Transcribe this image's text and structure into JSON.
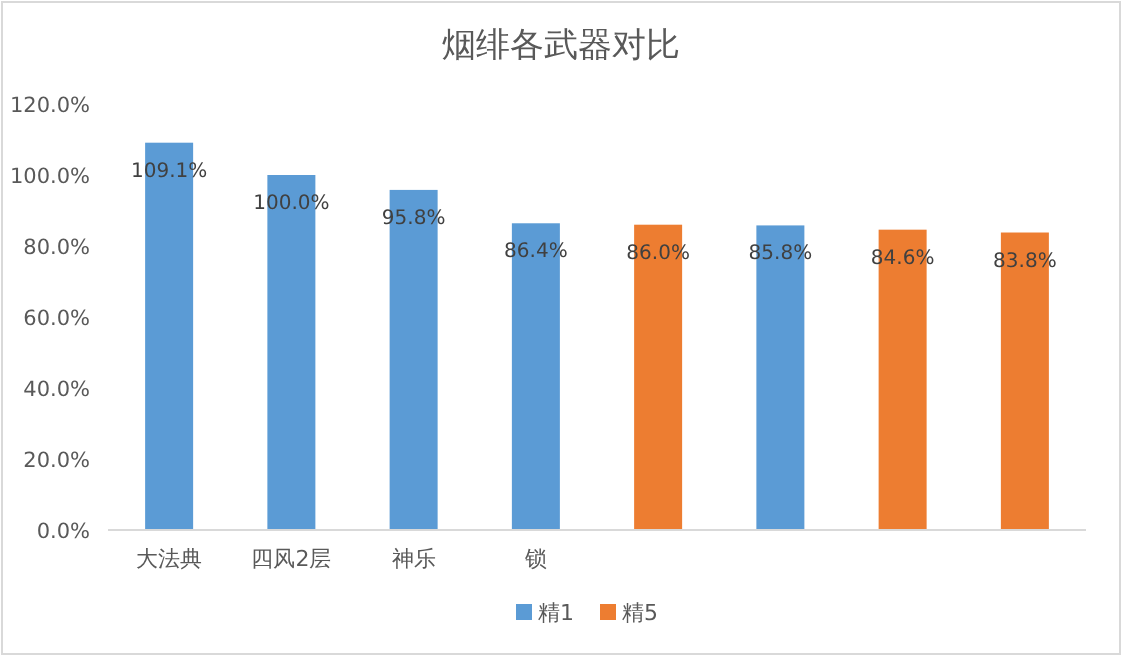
{
  "chart_data": {
    "type": "bar",
    "title": "烟绯各武器对比",
    "categories": [
      "大法典",
      "四风2层",
      "神乐",
      "锁",
      null,
      null,
      null,
      null
    ],
    "series": [
      {
        "name": "精1",
        "color": "#5b9bd5",
        "values": [
          109.1,
          100.0,
          95.8,
          86.4,
          null,
          85.8,
          null,
          null
        ],
        "value_labels": [
          "109.1%",
          "100.0%",
          "95.8%",
          "86.4%",
          null,
          "85.8%",
          null,
          null
        ]
      },
      {
        "name": "精5",
        "color": "#ed7d31",
        "values": [
          null,
          null,
          null,
          null,
          86.0,
          null,
          84.6,
          83.8
        ],
        "value_labels": [
          null,
          null,
          null,
          null,
          "86.0%",
          null,
          "84.6%",
          "83.8%"
        ]
      }
    ],
    "ylim": [
      0,
      120
    ],
    "yticks": [
      {
        "value": 0,
        "label": "0.0%"
      },
      {
        "value": 20,
        "label": "20.0%"
      },
      {
        "value": 40,
        "label": "40.0%"
      },
      {
        "value": 60,
        "label": "60.0%"
      },
      {
        "value": 80,
        "label": "80.0%"
      },
      {
        "value": 100,
        "label": "100.0%"
      },
      {
        "value": 120,
        "label": "120.0%"
      }
    ],
    "grid": false,
    "legend": "bottom"
  }
}
